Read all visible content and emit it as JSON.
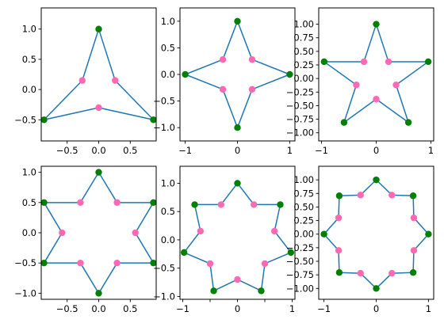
{
  "chart_data": [
    {
      "type": "line",
      "points": 3,
      "xlim": [
        -0.91,
        0.91
      ],
      "ylim": [
        -0.85,
        1.35
      ],
      "xticks": [
        -0.5,
        0.0,
        0.5
      ],
      "xtick_labels": [
        "−0.5",
        "0.0",
        "0.5"
      ],
      "yticks": [
        -0.5,
        0.0,
        0.5,
        1.0
      ],
      "ytick_labels": [
        "−0.5",
        "0.0",
        "0.5",
        "1.0"
      ],
      "outer": [
        [
          0.0,
          1.0
        ],
        [
          -0.866,
          -0.5
        ],
        [
          0.866,
          -0.5
        ]
      ],
      "inner": [
        [
          -0.26,
          0.15
        ],
        [
          0.0,
          -0.3
        ],
        [
          0.26,
          0.15
        ]
      ]
    },
    {
      "type": "line",
      "points": 4,
      "xlim": [
        -1.1,
        1.1
      ],
      "ylim": [
        -1.25,
        1.25
      ],
      "xticks": [
        -1.0,
        0.0,
        1.0
      ],
      "xtick_labels": [
        "−1",
        "0",
        "1"
      ],
      "yticks": [
        -1.0,
        -0.5,
        0.0,
        0.5,
        1.0
      ],
      "ytick_labels": [
        "−1.0",
        "−0.5",
        "0.0",
        "0.5",
        "1.0"
      ],
      "outer": [
        [
          0.0,
          1.0
        ],
        [
          -1.0,
          0.0
        ],
        [
          0.0,
          -1.0
        ],
        [
          1.0,
          0.0
        ]
      ],
      "inner": [
        [
          -0.28,
          0.28
        ],
        [
          -0.28,
          -0.28
        ],
        [
          0.28,
          -0.28
        ],
        [
          0.28,
          0.28
        ]
      ]
    },
    {
      "type": "line",
      "points": 5,
      "xlim": [
        -1.05,
        1.05
      ],
      "ylim": [
        -1.15,
        1.3
      ],
      "xticks": [
        -1.0,
        0.0,
        1.0
      ],
      "xtick_labels": [
        "−1",
        "0",
        "1"
      ],
      "yticks": [
        -1.0,
        -0.75,
        -0.5,
        -0.25,
        0.0,
        0.25,
        0.5,
        0.75,
        1.0
      ],
      "ytick_labels": [
        "−1.00",
        "−0.75",
        "−0.50",
        "−0.25",
        "0.00",
        "0.25",
        "0.50",
        "0.75",
        "1.00"
      ],
      "outer": [
        [
          0.0,
          1.0
        ],
        [
          -0.951,
          0.309
        ],
        [
          -0.588,
          -0.809
        ],
        [
          0.588,
          -0.809
        ],
        [
          0.951,
          0.309
        ]
      ],
      "inner": [
        [
          -0.224,
          0.309
        ],
        [
          -0.363,
          -0.118
        ],
        [
          0.0,
          -0.38
        ],
        [
          0.363,
          -0.118
        ],
        [
          0.224,
          0.309
        ]
      ]
    },
    {
      "type": "line",
      "points": 6,
      "xlim": [
        -0.91,
        0.91
      ],
      "ylim": [
        -1.1,
        1.1
      ],
      "xticks": [
        -0.5,
        0.0,
        0.5
      ],
      "xtick_labels": [
        "−0.5",
        "0.0",
        "0.5"
      ],
      "yticks": [
        -1.0,
        -0.5,
        0.0,
        0.5,
        1.0
      ],
      "ytick_labels": [
        "−1.0",
        "−0.5",
        "0.0",
        "0.5",
        "1.0"
      ],
      "outer": [
        [
          0.0,
          1.0
        ],
        [
          -0.866,
          0.5
        ],
        [
          -0.866,
          -0.5
        ],
        [
          0.0,
          -1.0
        ],
        [
          0.866,
          -0.5
        ],
        [
          0.866,
          0.5
        ]
      ],
      "inner": [
        [
          -0.29,
          0.5
        ],
        [
          -0.58,
          0.0
        ],
        [
          -0.29,
          -0.5
        ],
        [
          0.29,
          -0.5
        ],
        [
          0.58,
          0.0
        ],
        [
          0.29,
          0.5
        ]
      ]
    },
    {
      "type": "line",
      "points": 7,
      "xlim": [
        -1.05,
        1.05
      ],
      "ylim": [
        -1.05,
        1.3
      ],
      "xticks": [
        -1.0,
        -0.5,
        0.0,
        0.5,
        1.0
      ],
      "xtick_labels": [
        "−1",
        "",
        "0",
        "",
        "1"
      ],
      "yticks": [
        -1.0,
        -0.5,
        0.0,
        0.5,
        1.0
      ],
      "ytick_labels": [
        "−1.0",
        "−0.5",
        "0.0",
        "0.5",
        "1.0"
      ],
      "outer": [
        [
          0.0,
          1.0
        ],
        [
          -0.782,
          0.623
        ],
        [
          -0.975,
          -0.223
        ],
        [
          -0.434,
          -0.901
        ],
        [
          0.434,
          -0.901
        ],
        [
          0.975,
          -0.223
        ],
        [
          0.782,
          0.623
        ]
      ],
      "inner": [
        [
          -0.3,
          0.623
        ],
        [
          -0.676,
          0.154
        ],
        [
          -0.5,
          -0.42
        ],
        [
          0.0,
          -0.7
        ],
        [
          0.5,
          -0.42
        ],
        [
          0.676,
          0.154
        ],
        [
          0.3,
          0.623
        ]
      ]
    },
    {
      "type": "line",
      "points": 8,
      "xlim": [
        -1.1,
        1.1
      ],
      "ylim": [
        -1.2,
        1.25
      ],
      "xticks": [
        -1.0,
        0.0,
        1.0
      ],
      "xtick_labels": [
        "−1",
        "0",
        "1"
      ],
      "yticks": [
        -1.0,
        -0.75,
        -0.5,
        -0.25,
        0.0,
        0.25,
        0.5,
        0.75,
        1.0
      ],
      "ytick_labels": [
        "−1.00",
        "−0.75",
        "−0.50",
        "−0.25",
        "0.00",
        "0.25",
        "0.50",
        "0.75",
        "1.00"
      ],
      "outer": [
        [
          0.0,
          1.0
        ],
        [
          -0.707,
          0.707
        ],
        [
          -1.0,
          0.0
        ],
        [
          -0.707,
          -0.707
        ],
        [
          0.0,
          -1.0
        ],
        [
          0.707,
          -0.707
        ],
        [
          1.0,
          0.0
        ],
        [
          0.707,
          0.707
        ]
      ],
      "inner": [
        [
          -0.3,
          0.72
        ],
        [
          -0.72,
          0.3
        ],
        [
          -0.72,
          -0.3
        ],
        [
          -0.3,
          -0.72
        ],
        [
          0.3,
          -0.72
        ],
        [
          0.72,
          -0.3
        ],
        [
          0.72,
          0.3
        ],
        [
          0.3,
          0.72
        ]
      ]
    }
  ],
  "style": {
    "line_color": "#1f77b4",
    "outer_marker_color": "#008000",
    "inner_marker_color": "#ff69b4",
    "frame_color": "#000000"
  }
}
